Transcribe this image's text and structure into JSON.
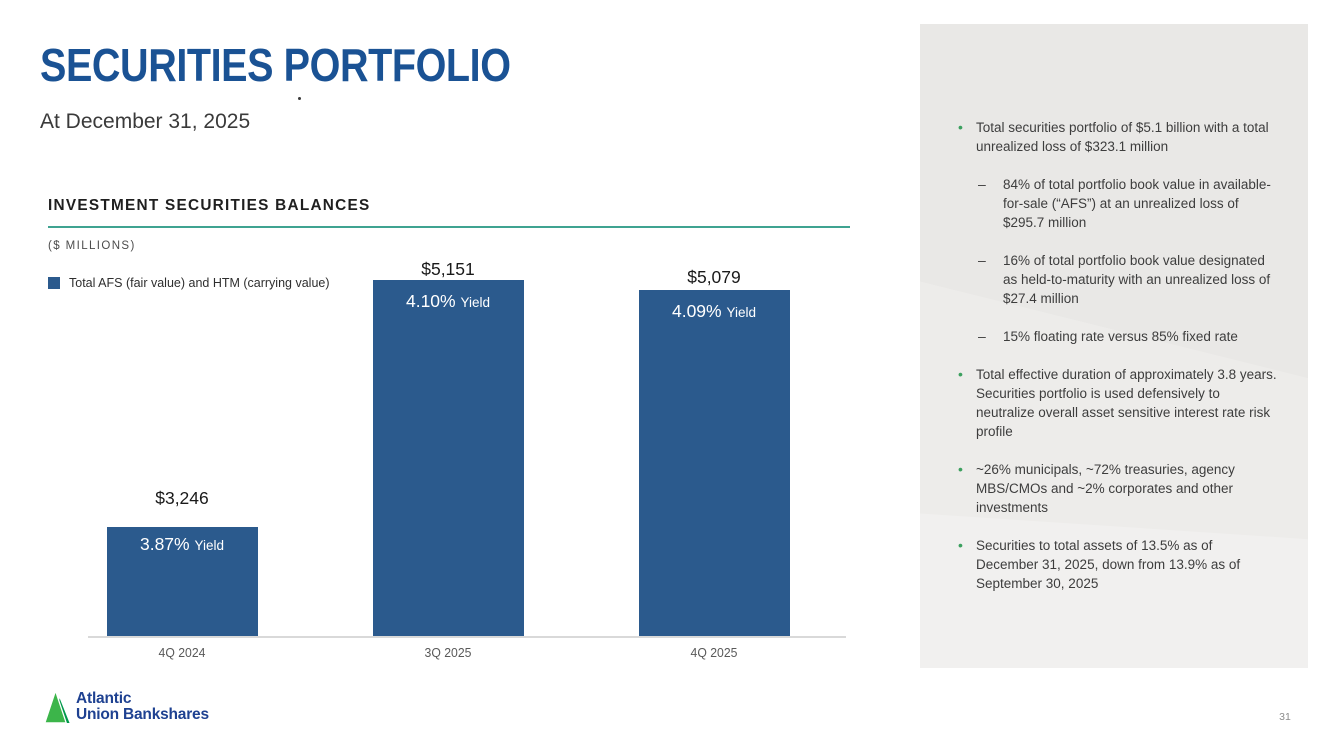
{
  "slide": {
    "title": "SECURITIES PORTFOLIO",
    "subtitle": "At December 31, 2025",
    "page_number": "31"
  },
  "chart": {
    "title": "INVESTMENT SECURITIES BALANCES",
    "units_label": "($ MILLIONS)",
    "legend": "Total AFS (fair value) and HTM (carrying value)"
  },
  "chart_data": {
    "type": "bar",
    "title": "INVESTMENT SECURITIES BALANCES",
    "units": "$ millions",
    "categories": [
      "4Q 2024",
      "3Q 2025",
      "4Q 2025"
    ],
    "series": [
      {
        "name": "Total AFS (fair value) and HTM (carrying value)",
        "values": [
          3246,
          5151,
          5079
        ]
      }
    ],
    "value_labels": [
      "$3,246",
      "$5,151",
      "$5,079"
    ],
    "yields": [
      "3.87%",
      "4.10%",
      "4.09%"
    ],
    "yield_suffix": "Yield",
    "ylim": [
      2400,
      5200
    ],
    "grid": false,
    "legend_position": "top-left",
    "bar_color": "#2b5a8d"
  },
  "sidebar": {
    "bullet_marker": "•",
    "sub_bullet_marker": "–",
    "bullets": [
      {
        "level": 1,
        "text": "Total securities portfolio of $5.1 billion with a total unrealized loss of $323.1 million"
      },
      {
        "level": 2,
        "text": "84% of total portfolio book value in available-for-sale (“AFS”) at an unrealized loss of $295.7 million"
      },
      {
        "level": 2,
        "text": "16% of total portfolio book value designated as held-to-maturity with an unrealized loss of $27.4 million"
      },
      {
        "level": 2,
        "text": "15% floating rate versus 85% fixed rate"
      },
      {
        "level": 1,
        "text": "Total effective duration of approximately 3.8 years. Securities portfolio is used defensively to neutralize overall asset sensitive interest rate risk profile"
      },
      {
        "level": 1,
        "text": "~26% municipals, ~72% treasuries, agency MBS/CMOs and ~2% corporates and other investments"
      },
      {
        "level": 1,
        "text": "Securities to total assets of 13.5% as of December 31, 2025, down from 13.9% as of September 30, 2025"
      }
    ]
  },
  "footer": {
    "logo_line1": "Atlantic",
    "logo_line2": "Union Bankshares"
  },
  "colors": {
    "heading_blue": "#1a5294",
    "bar_blue": "#2b5a8d",
    "teal_underline": "#3fa391",
    "bullet_green": "#3ca05f",
    "logo_navy": "#1e4191",
    "logo_green_light": "#3cb54a",
    "logo_green_dark": "#00984b",
    "panel_gray": "#f1f0ef"
  }
}
